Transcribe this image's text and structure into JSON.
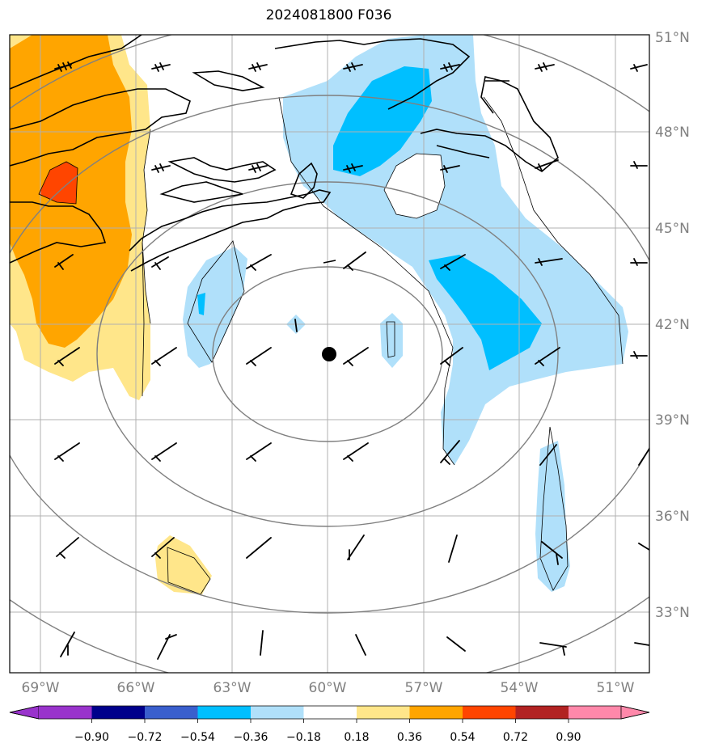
{
  "title": "2024081800 F036",
  "map": {
    "lon_range": [
      -70,
      -50
    ],
    "lat_range": [
      31,
      51
    ],
    "lat_ticks": [
      {
        "value": 33,
        "label": "33°N"
      },
      {
        "value": 36,
        "label": "36°N"
      },
      {
        "value": 39,
        "label": "39°N"
      },
      {
        "value": 42,
        "label": "42°N"
      },
      {
        "value": 45,
        "label": "45°N"
      },
      {
        "value": 48,
        "label": "48°N"
      },
      {
        "value": 51,
        "label": "51°N"
      }
    ],
    "lon_ticks": [
      {
        "value": -69,
        "label": "69°W"
      },
      {
        "value": -66,
        "label": "66°W"
      },
      {
        "value": -63,
        "label": "63°W"
      },
      {
        "value": -60,
        "label": "60°W"
      },
      {
        "value": -57,
        "label": "57°W"
      },
      {
        "value": -54,
        "label": "54°W"
      },
      {
        "value": -51,
        "label": "51°W"
      }
    ],
    "center_marker": {
      "lon": -60,
      "lat": 40.9
    },
    "grid": true,
    "range_rings": 4,
    "grid_line_color": "#b0b0b0",
    "ring_color": "#808080"
  },
  "colorbar": {
    "colors": [
      "#9933cc",
      "#00008b",
      "#3a5fcd",
      "#00bfff",
      "#b0e0fa",
      "#ffffff",
      "#ffe68a",
      "#ffa500",
      "#ff4500",
      "#b22222",
      "#ff88aa"
    ],
    "labels": [
      "−0.90",
      "−0.72",
      "−0.54",
      "−0.36",
      "−0.18",
      "0.18",
      "0.36",
      "0.54",
      "0.72",
      "0.90"
    ]
  }
}
